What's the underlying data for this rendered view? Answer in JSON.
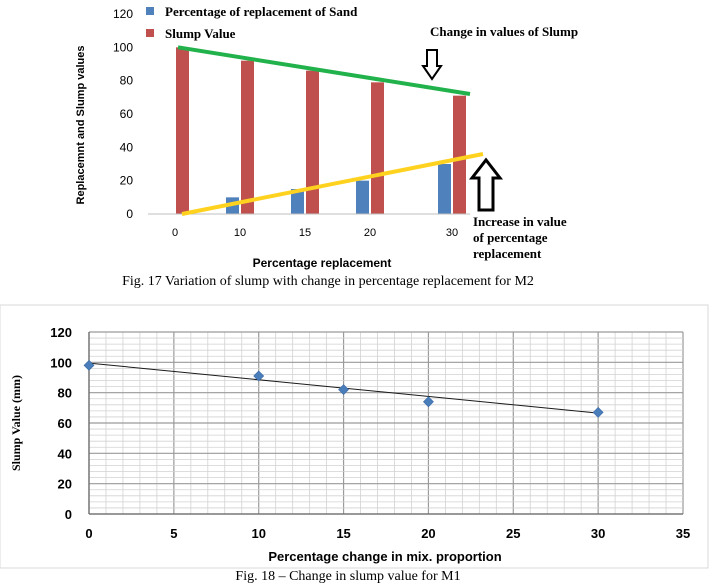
{
  "figures": [
    {
      "caption": "Fig. 17 Variation of slump with change in percentage replacement for M2",
      "annotations": {
        "slump_change": "Change in values of Slump",
        "increase_line1": "Increase in value",
        "increase_line2": "of percentage",
        "increase_line3": "replacement"
      }
    },
    {
      "caption": "Fig. 18 – Change in slump value for M1"
    }
  ],
  "chart_data": [
    {
      "type": "bar",
      "categories": [
        "0",
        "10",
        "15",
        "20",
        "30"
      ],
      "series": [
        {
          "name": "Percentage of replacement of Sand",
          "values": [
            0,
            10,
            15,
            20,
            30
          ],
          "color": "#4f81bd"
        },
        {
          "name": "Slump Value",
          "values": [
            100,
            92,
            86,
            79,
            71
          ],
          "color": "#c0504d"
        }
      ],
      "trendlines": [
        {
          "series": "Slump Value",
          "color": "#22b24c",
          "from": 100,
          "to": 72
        },
        {
          "series": "Percentage of replacement of Sand",
          "color": "#ffd21f",
          "from": 0,
          "to": 36
        }
      ],
      "xlabel": "Percentage replacement",
      "ylabel": "Replacemnt and Slump values",
      "ylim": [
        0,
        120
      ],
      "yticks": [
        0,
        20,
        40,
        60,
        80,
        100,
        120
      ],
      "legend": "top-left",
      "grid": false
    },
    {
      "type": "scatter",
      "points": [
        {
          "x": 0,
          "y": 98
        },
        {
          "x": 10,
          "y": 91
        },
        {
          "x": 15,
          "y": 82
        },
        {
          "x": 20,
          "y": 74
        },
        {
          "x": 30,
          "y": 67
        }
      ],
      "trendline": {
        "from": [
          0,
          99.5
        ],
        "to": [
          30,
          66.5
        ]
      },
      "marker_color": "#4a7ebb",
      "xlabel": "Percentage change  in mix. proportion",
      "ylabel": "Slump Value (mm)",
      "xlim": [
        0,
        35
      ],
      "ylim": [
        0,
        120
      ],
      "xticks": [
        0,
        5,
        10,
        15,
        20,
        25,
        30,
        35
      ],
      "yticks": [
        0,
        20,
        40,
        60,
        80,
        100,
        120
      ],
      "grid": true
    }
  ]
}
